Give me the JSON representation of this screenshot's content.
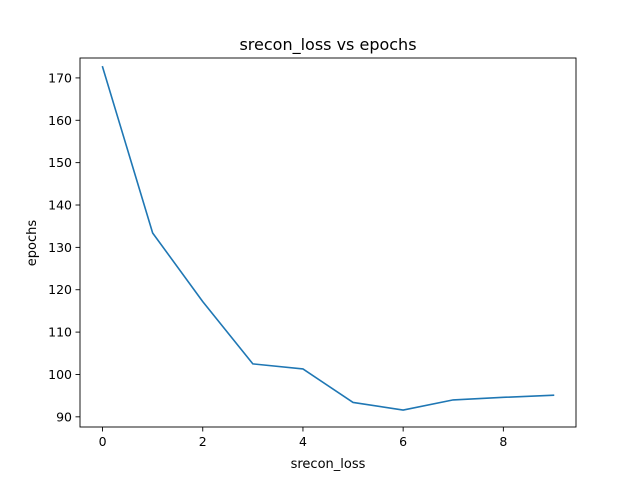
{
  "chart_data": {
    "type": "line",
    "title": "srecon_loss vs epochs",
    "xlabel": "srecon_loss",
    "ylabel": "epochs",
    "x": [
      0,
      1,
      2,
      3,
      4,
      5,
      6,
      7,
      8,
      9
    ],
    "series": [
      {
        "values": [
          172.6,
          133.4,
          117.2,
          102.5,
          101.3,
          93.4,
          91.6,
          94.0,
          94.6,
          95.1
        ],
        "color": "#1f77b4"
      }
    ],
    "xlim": [
      -0.45,
      9.45
    ],
    "ylim": [
      87.6,
      174.7
    ],
    "xticks": [
      0,
      2,
      4,
      6,
      8
    ],
    "yticks": [
      90,
      100,
      110,
      120,
      130,
      140,
      150,
      160,
      170
    ],
    "grid": false,
    "legend": "none"
  }
}
